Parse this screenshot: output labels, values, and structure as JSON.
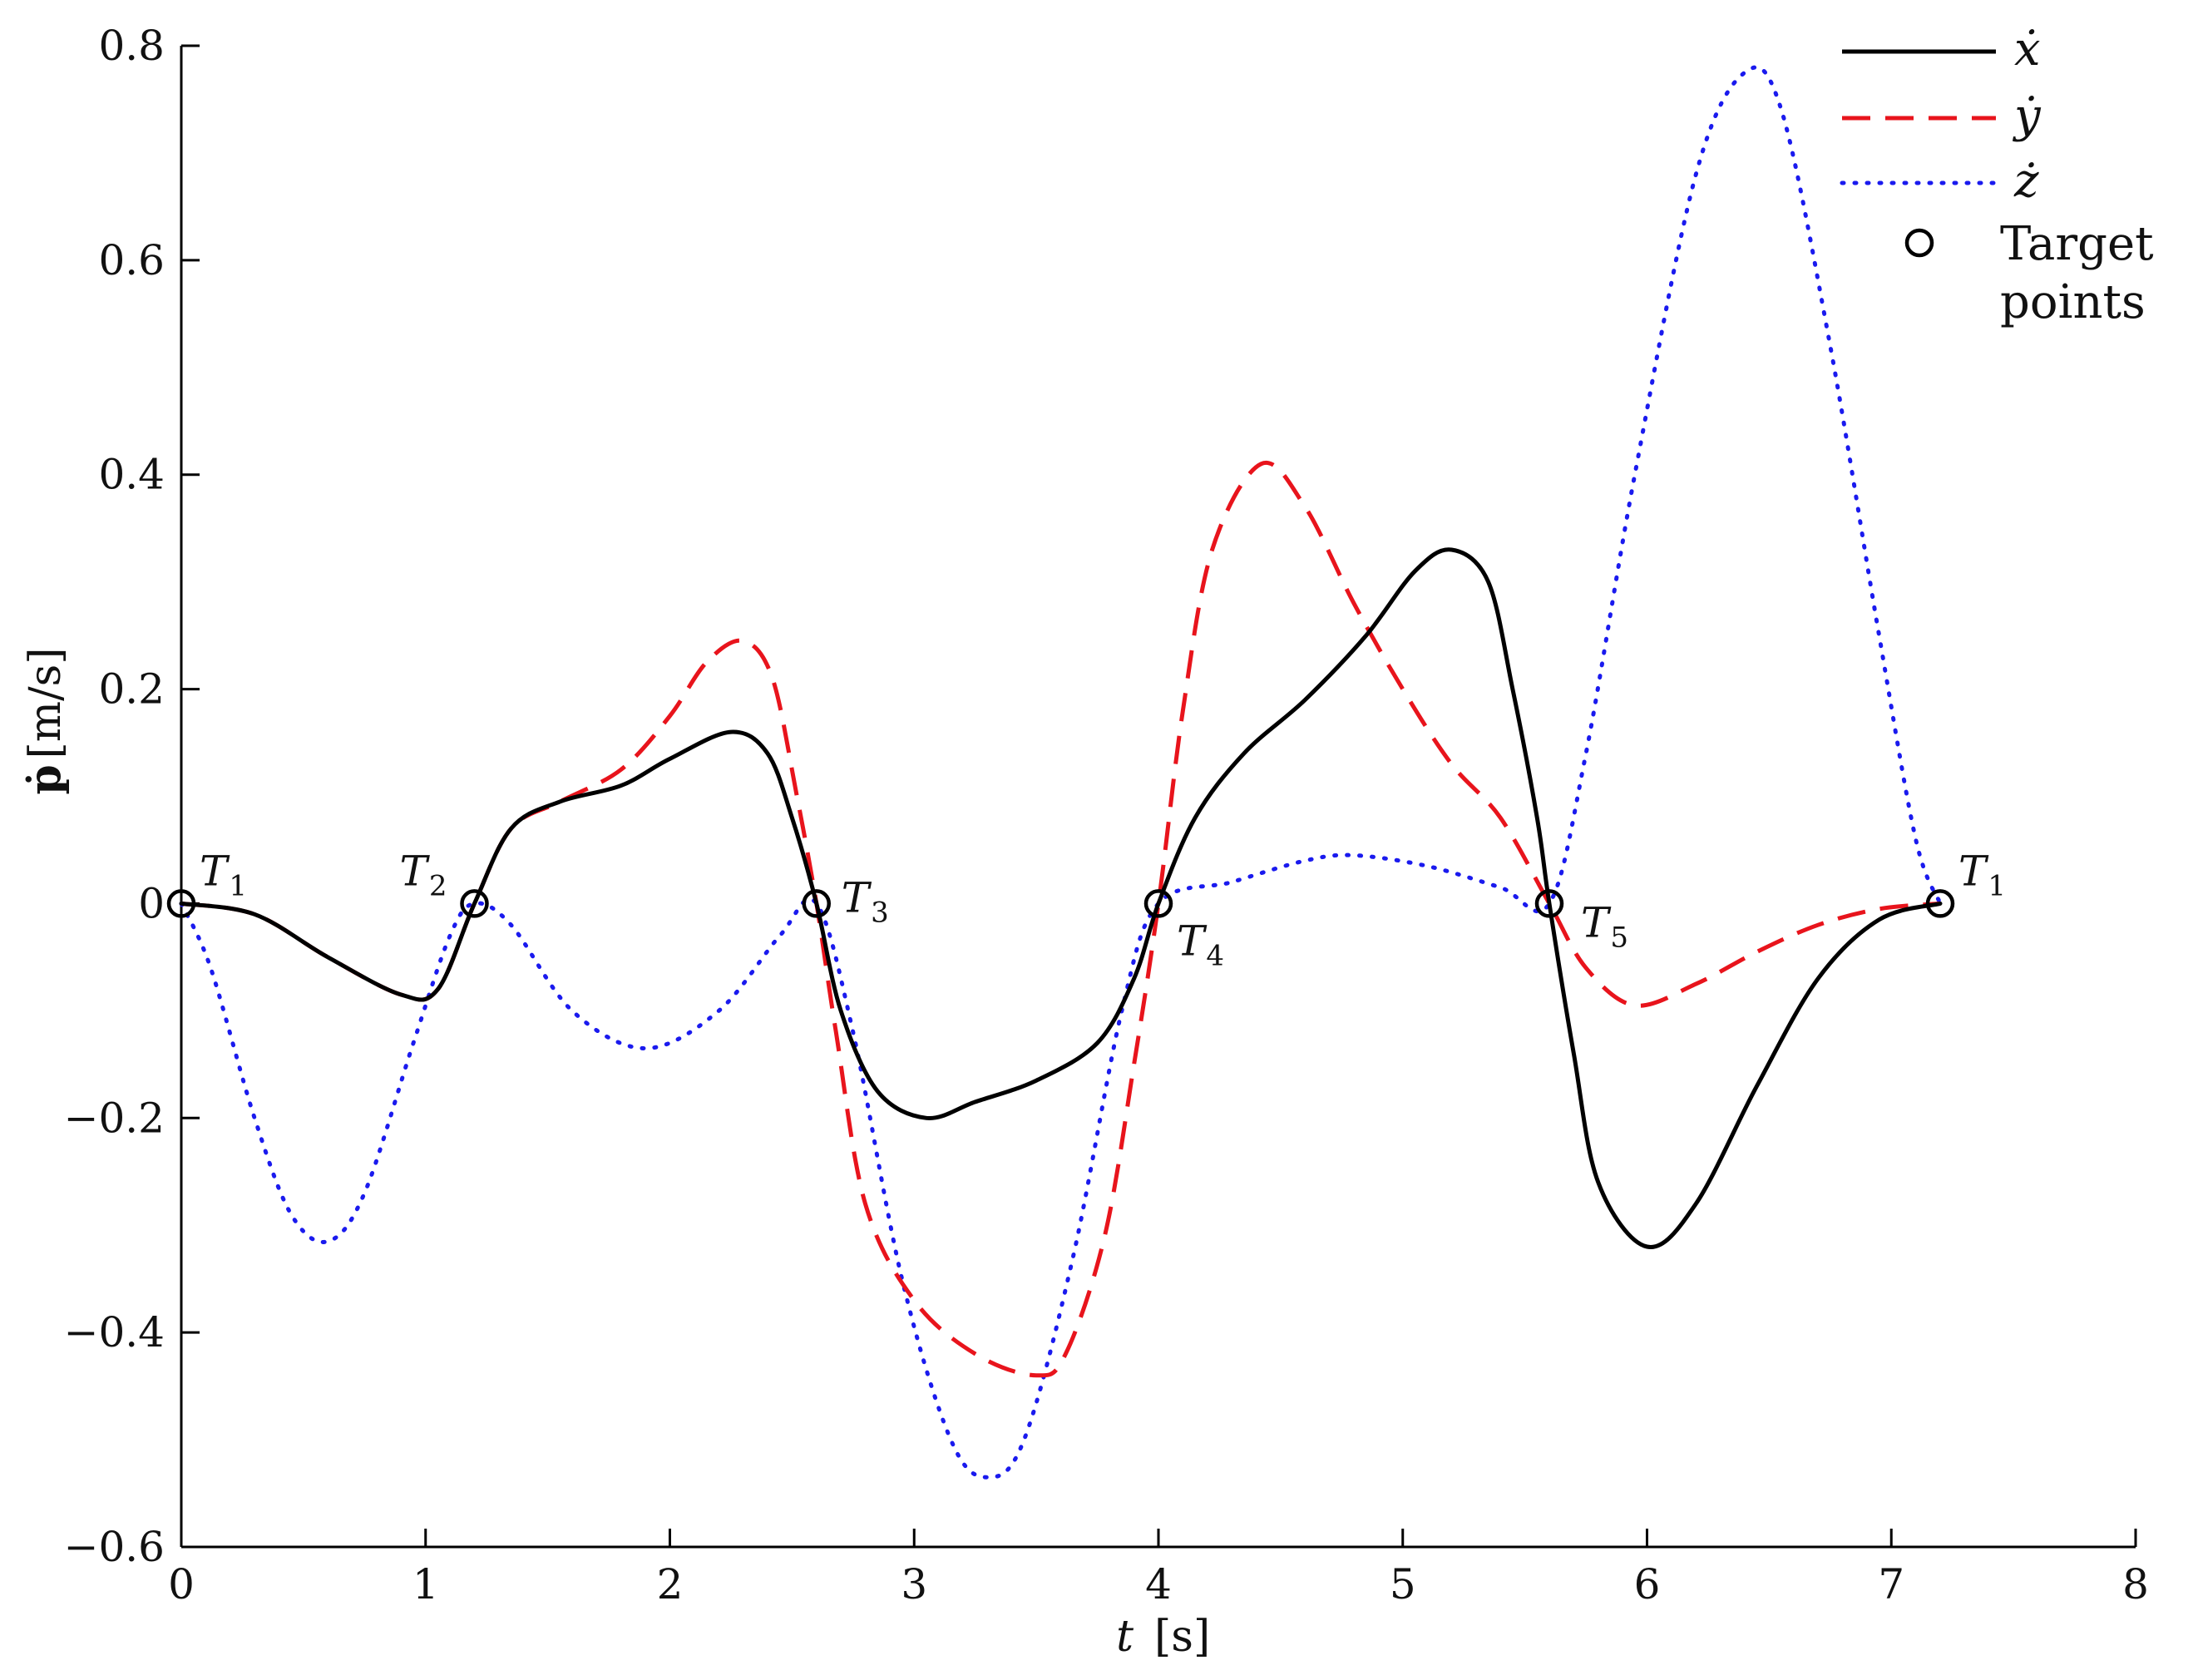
{
  "chart_data": {
    "type": "line",
    "xlabel": "t",
    "xunit": "[s]",
    "ylabel": "ṗ",
    "yunit": "[m/s]",
    "xlim": [
      0,
      8
    ],
    "ylim": [
      -0.6,
      0.8
    ],
    "xticks": [
      0,
      1,
      2,
      3,
      4,
      5,
      6,
      7,
      8
    ],
    "xtick_labels": [
      "0",
      "1",
      "2",
      "3",
      "4",
      "5",
      "6",
      "7",
      "8"
    ],
    "yticks": [
      -0.6,
      -0.4,
      -0.2,
      0,
      0.2,
      0.4,
      0.6,
      0.8
    ],
    "ytick_labels": [
      "−0.6",
      "−0.4",
      "−0.2",
      "0",
      "0.2",
      "0.4",
      "0.6",
      "0.8"
    ],
    "grid": false,
    "legend_position": "top-right",
    "series": [
      {
        "name": "ẋ",
        "color": "#000000",
        "style": "solid",
        "points": [
          [
            0,
            0
          ],
          [
            0.3,
            -0.01
          ],
          [
            0.6,
            -0.05
          ],
          [
            0.9,
            -0.085
          ],
          [
            1.05,
            -0.08
          ],
          [
            1.2,
            0
          ],
          [
            1.35,
            0.07
          ],
          [
            1.55,
            0.095
          ],
          [
            1.8,
            0.11
          ],
          [
            2.0,
            0.135
          ],
          [
            2.25,
            0.16
          ],
          [
            2.4,
            0.14
          ],
          [
            2.5,
            0.08
          ],
          [
            2.6,
            0
          ],
          [
            2.7,
            -0.1
          ],
          [
            2.85,
            -0.175
          ],
          [
            3.05,
            -0.2
          ],
          [
            3.25,
            -0.185
          ],
          [
            3.5,
            -0.165
          ],
          [
            3.75,
            -0.13
          ],
          [
            3.9,
            -0.07
          ],
          [
            4.0,
            0
          ],
          [
            4.15,
            0.08
          ],
          [
            4.35,
            0.14
          ],
          [
            4.6,
            0.19
          ],
          [
            4.85,
            0.25
          ],
          [
            5.05,
            0.31
          ],
          [
            5.2,
            0.33
          ],
          [
            5.35,
            0.3
          ],
          [
            5.45,
            0.2
          ],
          [
            5.55,
            0.08
          ],
          [
            5.6,
            0
          ],
          [
            5.7,
            -0.14
          ],
          [
            5.8,
            -0.26
          ],
          [
            6.0,
            -0.32
          ],
          [
            6.2,
            -0.28
          ],
          [
            6.45,
            -0.17
          ],
          [
            6.7,
            -0.07
          ],
          [
            6.95,
            -0.015
          ],
          [
            7.2,
            0
          ]
        ]
      },
      {
        "name": "ẏ",
        "color": "#e8141c",
        "style": "dashed",
        "points": [
          [
            0,
            0
          ],
          [
            0.3,
            -0.01
          ],
          [
            0.6,
            -0.05
          ],
          [
            0.9,
            -0.085
          ],
          [
            1.05,
            -0.08
          ],
          [
            1.2,
            0
          ],
          [
            1.35,
            0.07
          ],
          [
            1.55,
            0.095
          ],
          [
            1.8,
            0.125
          ],
          [
            2.0,
            0.175
          ],
          [
            2.15,
            0.225
          ],
          [
            2.3,
            0.245
          ],
          [
            2.42,
            0.21
          ],
          [
            2.52,
            0.1
          ],
          [
            2.6,
            0
          ],
          [
            2.68,
            -0.12
          ],
          [
            2.8,
            -0.28
          ],
          [
            3.0,
            -0.37
          ],
          [
            3.25,
            -0.42
          ],
          [
            3.5,
            -0.44
          ],
          [
            3.62,
            -0.42
          ],
          [
            3.78,
            -0.31
          ],
          [
            3.9,
            -0.15
          ],
          [
            4.0,
            0
          ],
          [
            4.1,
            0.18
          ],
          [
            4.22,
            0.33
          ],
          [
            4.42,
            0.41
          ],
          [
            4.6,
            0.37
          ],
          [
            4.8,
            0.28
          ],
          [
            5.0,
            0.2
          ],
          [
            5.2,
            0.13
          ],
          [
            5.4,
            0.08
          ],
          [
            5.6,
            0
          ],
          [
            5.75,
            -0.06
          ],
          [
            5.95,
            -0.095
          ],
          [
            6.2,
            -0.075
          ],
          [
            6.45,
            -0.045
          ],
          [
            6.7,
            -0.02
          ],
          [
            6.95,
            -0.005
          ],
          [
            7.2,
            0
          ]
        ]
      },
      {
        "name": "ż",
        "color": "#1a1aee",
        "style": "dotted",
        "points": [
          [
            0,
            0
          ],
          [
            0.12,
            -0.06
          ],
          [
            0.3,
            -0.2
          ],
          [
            0.45,
            -0.29
          ],
          [
            0.6,
            -0.315
          ],
          [
            0.75,
            -0.27
          ],
          [
            0.95,
            -0.13
          ],
          [
            1.1,
            -0.03
          ],
          [
            1.2,
            0
          ],
          [
            1.35,
            -0.02
          ],
          [
            1.6,
            -0.1
          ],
          [
            1.9,
            -0.135
          ],
          [
            2.2,
            -0.1
          ],
          [
            2.45,
            -0.03
          ],
          [
            2.6,
            0
          ],
          [
            2.75,
            -0.12
          ],
          [
            2.95,
            -0.35
          ],
          [
            3.15,
            -0.5
          ],
          [
            3.3,
            -0.535
          ],
          [
            3.45,
            -0.5
          ],
          [
            3.65,
            -0.33
          ],
          [
            3.85,
            -0.1
          ],
          [
            4.0,
            0
          ],
          [
            4.3,
            0.02
          ],
          [
            4.6,
            0.04
          ],
          [
            4.8,
            0.045
          ],
          [
            5.1,
            0.035
          ],
          [
            5.4,
            0.015
          ],
          [
            5.6,
            0
          ],
          [
            5.75,
            0.14
          ],
          [
            5.95,
            0.4
          ],
          [
            6.2,
            0.68
          ],
          [
            6.4,
            0.775
          ],
          [
            6.55,
            0.74
          ],
          [
            6.75,
            0.52
          ],
          [
            6.95,
            0.25
          ],
          [
            7.1,
            0.06
          ],
          [
            7.2,
            0
          ]
        ]
      }
    ],
    "target_points": {
      "name_line1": "Target",
      "name_line2": "points",
      "points": [
        {
          "t": 0,
          "v": 0,
          "label": "T",
          "sub": "1"
        },
        {
          "t": 1.2,
          "v": 0,
          "label": "T",
          "sub": "2"
        },
        {
          "t": 2.6,
          "v": 0,
          "label": "T",
          "sub": "3"
        },
        {
          "t": 4.0,
          "v": 0,
          "label": "T",
          "sub": "4"
        },
        {
          "t": 5.6,
          "v": 0,
          "label": "T",
          "sub": "5"
        },
        {
          "t": 7.2,
          "v": 0,
          "label": "T",
          "sub": "1"
        }
      ]
    }
  }
}
